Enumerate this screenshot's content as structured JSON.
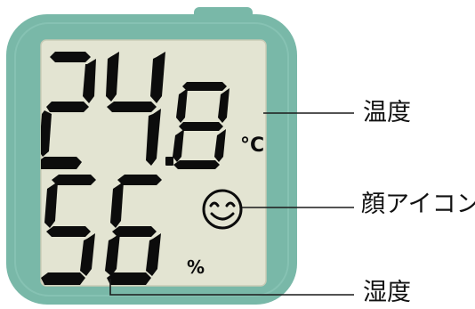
{
  "display": {
    "temperature": {
      "value": "24.8",
      "unit": "°C"
    },
    "humidity": {
      "value": "56",
      "unit": "%"
    },
    "face_icon": "smiley-face-icon"
  },
  "labels": {
    "temperature": "温度",
    "face_icon": "顔アイコン",
    "humidity": "湿度"
  },
  "colors": {
    "housing": "#79b8a8",
    "housing_edge": "#5f9e8e",
    "screen": "#e3e4d2",
    "segment": "#0c0c0c",
    "leader_line": "#1a1a1a"
  }
}
